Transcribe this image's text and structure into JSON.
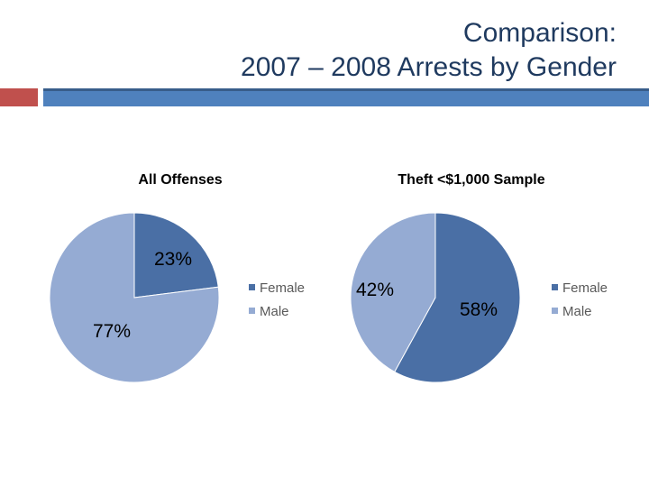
{
  "slide": {
    "title_line1": "Comparison:",
    "title_line2": "2007 – 2008 Arrests by Gender"
  },
  "colors": {
    "accent_red": "#c0504d",
    "accent_blue": "#4f81bd"
  },
  "chart_data": [
    {
      "type": "pie",
      "title": "All Offenses",
      "slices": [
        {
          "label": "Female",
          "value": 23,
          "display": "23%",
          "color": "#4a6fa5"
        },
        {
          "label": "Male",
          "value": 77,
          "display": "77%",
          "color": "#95abd3"
        }
      ],
      "legend": [
        "Female",
        "Male"
      ]
    },
    {
      "type": "pie",
      "title": "Theft <$1,000 Sample",
      "slices": [
        {
          "label": "Female",
          "value": 58,
          "display": "58%",
          "color": "#4a6fa5"
        },
        {
          "label": "Male",
          "value": 42,
          "display": "42%",
          "color": "#95abd3"
        }
      ],
      "legend": [
        "Female",
        "Male"
      ]
    }
  ]
}
